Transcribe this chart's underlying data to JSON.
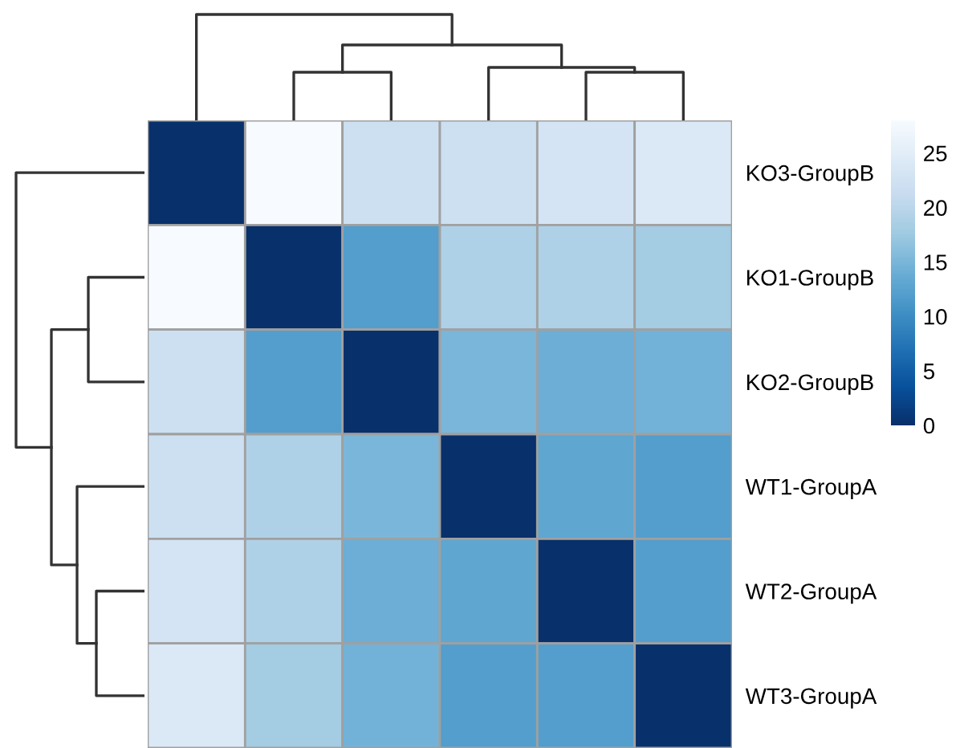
{
  "chart_data": {
    "type": "heatmap",
    "categories": [
      null,
      null,
      null,
      null,
      null,
      null
    ],
    "y_categories": [
      "KO3-GroupB",
      "KO1-GroupB",
      "KO2-GroupB",
      "WT1-GroupA",
      "WT2-GroupA",
      "WT3-GroupA"
    ],
    "cells": [
      [
        0,
        28,
        22,
        22,
        23,
        24
      ],
      [
        28,
        0,
        12,
        19,
        19,
        18
      ],
      [
        22,
        12,
        0,
        15,
        14,
        14.5
      ],
      [
        22,
        19,
        15,
        0,
        13,
        12
      ],
      [
        23,
        19,
        14,
        13,
        0,
        12
      ],
      [
        24,
        18,
        14.5,
        12,
        12,
        0
      ]
    ],
    "clim": [
      0,
      28
    ],
    "cticks": [
      0,
      5,
      10,
      15,
      20,
      25
    ]
  }
}
